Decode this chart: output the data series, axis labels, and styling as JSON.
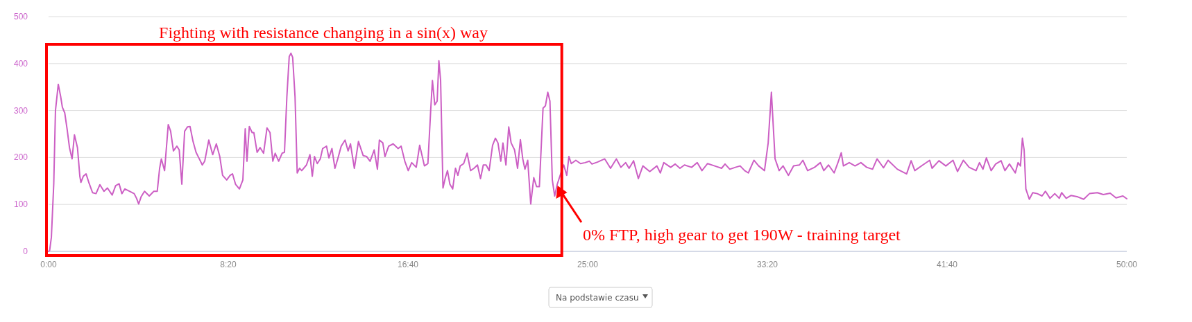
{
  "chart_data": {
    "type": "line",
    "color": "#cc5fc4",
    "x": [
      0,
      0.05,
      0.13,
      0.24,
      0.32,
      0.45,
      0.56,
      0.64,
      0.75,
      0.86,
      0.97,
      1.09,
      1.2,
      1.34,
      1.45,
      1.5,
      1.61,
      1.74,
      1.88,
      2.04,
      2.2,
      2.38,
      2.57,
      2.73,
      2.95,
      3.11,
      3.27,
      3.4,
      3.54,
      3.75,
      3.97,
      4.08,
      4.18,
      4.29,
      4.45,
      4.67,
      4.88,
      5.04,
      5.15,
      5.23,
      5.38,
      5.55,
      5.66,
      5.79,
      5.95,
      6.06,
      6.18,
      6.31,
      6.44,
      6.56,
      6.7,
      6.84,
      6.97,
      7.13,
      7.24,
      7.43,
      7.61,
      7.78,
      7.94,
      8.07,
      8.26,
      8.42,
      8.53,
      8.67,
      8.85,
      9.01,
      9.12,
      9.2,
      9.31,
      9.44,
      9.52,
      9.67,
      9.81,
      9.97,
      10.13,
      10.27,
      10.4,
      10.51,
      10.67,
      10.83,
      10.94,
      11.05,
      11.16,
      11.24,
      11.32,
      11.43,
      11.53,
      11.64,
      11.74,
      11.96,
      12.12,
      12.23,
      12.33,
      12.46,
      12.6,
      12.71,
      12.89,
      13,
      13.14,
      13.28,
      13.41,
      13.57,
      13.75,
      13.89,
      14,
      14.18,
      14.37,
      14.59,
      14.75,
      14.91,
      15.1,
      15.25,
      15.34,
      15.5,
      15.6,
      15.77,
      15.98,
      16.21,
      16.35,
      16.52,
      16.68,
      16.84,
      17.05,
      17.21,
      17.43,
      17.59,
      17.72,
      17.8,
      17.91,
      18.02,
      18.1,
      18.18,
      18.29,
      18.4,
      18.5,
      18.61,
      18.74,
      18.87,
      18.98,
      19.09,
      19.25,
      19.41,
      19.57,
      19.73,
      19.89,
      20.03,
      20.16,
      20.29,
      20.43,
      20.59,
      20.72,
      20.84,
      20.97,
      21.07,
      21.21,
      21.34,
      21.45,
      21.61,
      21.75,
      21.88,
      21.99,
      22.09,
      22.22,
      22.36,
      22.5,
      22.63,
      22.76,
      22.93,
      23.04,
      23.15,
      23.25,
      23.36,
      23.47,
      23.59,
      23.76,
      23.89,
      24.03,
      24.13,
      24.24,
      24.45,
      24.67,
      24.88,
      25.08,
      25.2,
      25.45,
      25.79,
      26.06,
      26.33,
      26.54,
      26.76,
      26.92,
      27.13,
      27.35,
      27.56,
      27.88,
      28.21,
      28.37,
      28.53,
      28.85,
      29.06,
      29.28,
      29.49,
      29.82,
      30.08,
      30.3,
      30.56,
      30.89,
      31.21,
      31.37,
      31.59,
      31.85,
      32.07,
      32.28,
      32.45,
      32.71,
      32.93,
      33.2,
      33.37,
      33.52,
      33.69,
      33.88,
      34.06,
      34.31,
      34.55,
      34.82,
      34.98,
      35.2,
      35.52,
      35.79,
      35.95,
      36.17,
      36.43,
      36.59,
      36.76,
      36.86,
      37.13,
      37.4,
      37.67,
      37.94,
      38.21,
      38.42,
      38.72,
      38.93,
      39.36,
      39.79,
      40,
      40.17,
      40.54,
      40.86,
      40.97,
      41.29,
      41.61,
      41.94,
      42.15,
      42.42,
      42.69,
      43.01,
      43.17,
      43.33,
      43.49,
      43.71,
      43.92,
      44.17,
      44.35,
      44.56,
      44.83,
      44.96,
      45.07,
      45.16,
      45.24,
      45.32,
      45.48,
      45.64,
      45.85,
      46.07,
      46.23,
      46.44,
      46.66,
      46.87,
      46.98,
      47.19,
      47.41,
      47.73,
      48,
      48.27,
      48.64,
      48.91,
      49.23,
      49.5,
      49.82,
      50
    ],
    "values": [
      0,
      2,
      30,
      143,
      300,
      356,
      330,
      307,
      295,
      260,
      221,
      197,
      248,
      221,
      160,
      147,
      160,
      165,
      145,
      125,
      123,
      142,
      128,
      135,
      120,
      140,
      144,
      123,
      133,
      128,
      123,
      113,
      101,
      116,
      128,
      118,
      128,
      128,
      177,
      197,
      172,
      270,
      256,
      214,
      224,
      216,
      143,
      256,
      265,
      266,
      234,
      211,
      199,
      184,
      192,
      237,
      206,
      229,
      202,
      162,
      152,
      162,
      165,
      143,
      133,
      152,
      261,
      192,
      266,
      253,
      253,
      211,
      221,
      209,
      263,
      253,
      192,
      209,
      192,
      209,
      211,
      329,
      415,
      422,
      413,
      329,
      167,
      177,
      172,
      184,
      206,
      160,
      202,
      187,
      197,
      219,
      224,
      199,
      219,
      177,
      197,
      224,
      237,
      214,
      229,
      177,
      234,
      204,
      202,
      192,
      216,
      175,
      237,
      231,
      202,
      224,
      229,
      219,
      224,
      192,
      172,
      189,
      179,
      226,
      182,
      187,
      300,
      364,
      312,
      320,
      406,
      364,
      135,
      157,
      172,
      143,
      133,
      177,
      162,
      182,
      187,
      209,
      172,
      177,
      184,
      155,
      184,
      184,
      172,
      226,
      241,
      231,
      192,
      231,
      184,
      265,
      231,
      216,
      177,
      238,
      197,
      175,
      194,
      101,
      157,
      138,
      138,
      305,
      310,
      339,
      320,
      152,
      118,
      143,
      167,
      184,
      162,
      202,
      187,
      194,
      187,
      189,
      192,
      186,
      190,
      197,
      177,
      197,
      179,
      189,
      177,
      193,
      155,
      182,
      170,
      182,
      167,
      189,
      179,
      186,
      177,
      184,
      179,
      189,
      172,
      187,
      182,
      177,
      186,
      175,
      179,
      182,
      172,
      167,
      194,
      182,
      172,
      231,
      339,
      197,
      172,
      182,
      162,
      182,
      184,
      194,
      172,
      179,
      189,
      172,
      184,
      167,
      187,
      210,
      182,
      189,
      182,
      189,
      179,
      175,
      197,
      178,
      194,
      175,
      165,
      193,
      172,
      184,
      194,
      177,
      193,
      182,
      194,
      170,
      194,
      179,
      172,
      189,
      175,
      199,
      172,
      186,
      193,
      172,
      186,
      167,
      189,
      182,
      241,
      216,
      133,
      111,
      125,
      123,
      118,
      128,
      113,
      123,
      113,
      125,
      113,
      119,
      116,
      111,
      123,
      125,
      121,
      124,
      114,
      118,
      112
    ],
    "xlim": [
      0,
      50
    ],
    "xticks": [
      {
        "value": 0,
        "label": "0:00"
      },
      {
        "value": 8.333,
        "label": "8:20"
      },
      {
        "value": 16.667,
        "label": "16:40"
      },
      {
        "value": 25,
        "label": "25:00"
      },
      {
        "value": 33.333,
        "label": "33:20"
      },
      {
        "value": 41.667,
        "label": "41:40"
      },
      {
        "value": 50,
        "label": "50:00"
      }
    ],
    "ylim": [
      0,
      500
    ],
    "yticks": [
      0,
      100,
      200,
      300,
      400,
      500
    ],
    "grid": "y",
    "annotations": [
      "Fighting with resistance changing in a sin(x) way",
      {
        "text": "0% FTP, high gear to get 190W - training target",
        "x": 23.6,
        "y": 140
      },
      "Na podstawie czasu"
    ]
  }
}
